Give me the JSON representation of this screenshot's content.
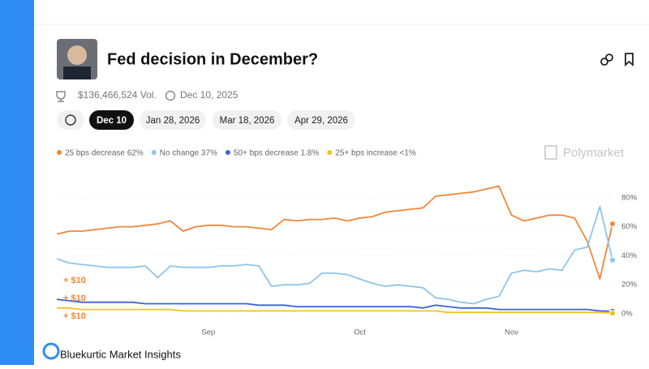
{
  "header": {
    "title": "Fed decision in December?",
    "volume": "$136,466,524 Vol.",
    "end_date": "Dec 10, 2025"
  },
  "tabs": [
    "Dec 10",
    "Jan 28, 2026",
    "Mar 18, 2026",
    "Apr 29, 2026"
  ],
  "footer": {
    "brand": "Bluekurtic Market Insights"
  },
  "chart_data": {
    "type": "line",
    "watermark": "Polymarket",
    "annotations": [
      "+ $10",
      "+ $10",
      "+ $10"
    ],
    "categories": [
      null,
      null,
      null,
      null,
      null,
      null,
      null,
      null,
      null,
      null,
      null,
      null,
      "Sep",
      null,
      null,
      null,
      null,
      null,
      null,
      null,
      null,
      null,
      null,
      null,
      "Oct",
      null,
      null,
      null,
      null,
      null,
      null,
      null,
      null,
      null,
      null,
      null,
      "Nov",
      null,
      null,
      null,
      null,
      null,
      null,
      null,
      null
    ],
    "ylim": [
      0,
      100
    ],
    "yticks": [
      {
        "value": 0,
        "label": "0%"
      },
      {
        "value": 20,
        "label": "20%"
      },
      {
        "value": 40,
        "label": "40%"
      },
      {
        "value": 60,
        "label": "60%"
      },
      {
        "value": 80,
        "label": "80%"
      }
    ],
    "grid": true,
    "series": [
      {
        "name": "25 bps decrease 62%",
        "color": "#f0873a",
        "values": [
          55,
          57,
          57,
          58,
          59,
          60,
          60,
          61,
          62,
          64,
          57,
          60,
          61,
          61,
          60,
          60,
          59,
          58,
          65,
          64,
          65,
          65,
          66,
          64,
          66,
          67,
          70,
          71,
          72,
          73,
          81,
          82,
          83,
          84,
          86,
          88,
          68,
          64,
          66,
          68,
          68,
          66,
          50,
          24,
          62
        ]
      },
      {
        "name": "No change 37%",
        "color": "#8ec5ec",
        "values": [
          38,
          35,
          34,
          33,
          32,
          32,
          32,
          33,
          25,
          33,
          32,
          32,
          32,
          33,
          33,
          34,
          33,
          19,
          20,
          20,
          21,
          28,
          28,
          27,
          24,
          21,
          19,
          20,
          19,
          18,
          11,
          10,
          8,
          7,
          10,
          12,
          28,
          30,
          29,
          31,
          30,
          44,
          46,
          74,
          37
        ]
      },
      {
        "name": "50+ bps decrease 1.8%",
        "color": "#3b63d8",
        "values": [
          10,
          9,
          8,
          8,
          8,
          8,
          8,
          7,
          7,
          7,
          7,
          7,
          7,
          7,
          7,
          7,
          6,
          6,
          6,
          5,
          5,
          5,
          5,
          5,
          5,
          5,
          5,
          5,
          5,
          4,
          6,
          5,
          4,
          4,
          4,
          3,
          3,
          3,
          3,
          3,
          3,
          3,
          3,
          2,
          1.8
        ]
      },
      {
        "name": "25+ bps increase <1%",
        "color": "#f2c21b",
        "values": [
          4,
          4,
          3,
          3,
          3,
          3,
          3,
          3,
          3,
          3,
          2,
          2,
          2,
          2,
          2,
          2,
          2,
          2,
          2,
          2,
          2,
          2,
          2,
          2,
          2,
          2,
          2,
          2,
          2,
          2,
          2,
          1,
          1,
          1,
          1,
          1,
          1,
          1,
          1,
          1,
          1,
          1,
          1,
          1,
          0.5
        ]
      }
    ]
  }
}
